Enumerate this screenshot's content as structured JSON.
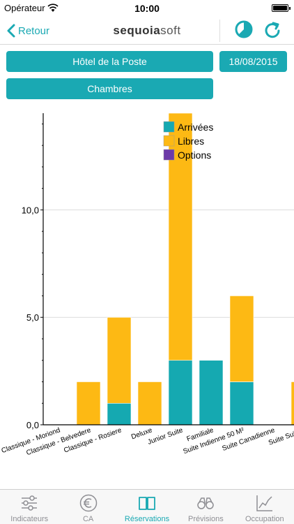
{
  "status_bar": {
    "carrier": "Opérateur",
    "time": "10:00"
  },
  "nav": {
    "back_label": "Retour",
    "logo_bold": "sequoia",
    "logo_light": "soft",
    "icons": [
      "chevron-left-icon",
      "pie-chart-icon",
      "refresh-icon"
    ],
    "accent_color": "#1aa9b3"
  },
  "filters": {
    "hotel": "Hôtel de la Poste",
    "date": "18/08/2015",
    "category": "Chambres"
  },
  "chart_data": {
    "type": "bar",
    "stacked": true,
    "categories": [
      "Classique - Moriond",
      "Classique - Belvedere",
      "Classique - Rosiere",
      "Deluxe",
      "Junior Suite",
      "Familiale",
      "Suite Indienne 50 M²",
      "Suite Canadienne",
      "Suite Suisse"
    ],
    "series": [
      {
        "name": "Arrivées",
        "color": "#15a9b1",
        "values": [
          0,
          0,
          1,
          0,
          3,
          3,
          2,
          0,
          0
        ]
      },
      {
        "name": "Libres",
        "color": "#fdb914",
        "values": [
          0,
          2,
          4,
          2,
          11.5,
          0,
          4,
          0,
          2
        ]
      },
      {
        "name": "Options",
        "color": "#6d3aa8",
        "values": [
          0,
          0,
          0,
          0,
          0,
          0,
          0,
          0,
          0
        ]
      }
    ],
    "ylim": [
      0,
      14.5
    ],
    "yticks": [
      0,
      5,
      10
    ],
    "ytick_labels": [
      "0,0",
      "5,0",
      "10,0"
    ],
    "grid": true,
    "legend_position": "top-center"
  },
  "tabs": [
    {
      "label": "Indicateurs",
      "icon": "sliders-icon",
      "active": false
    },
    {
      "label": "CA",
      "icon": "euro-icon",
      "active": false
    },
    {
      "label": "Réservations",
      "icon": "book-icon",
      "active": true
    },
    {
      "label": "Prévisions",
      "icon": "binoculars-icon",
      "active": false
    },
    {
      "label": "Occupation",
      "icon": "trend-chart-icon",
      "active": false
    }
  ]
}
